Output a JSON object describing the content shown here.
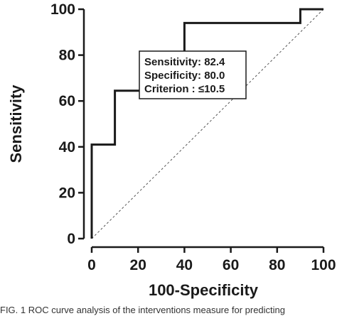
{
  "chart_data": {
    "type": "line",
    "xlabel": "100-Specificity",
    "ylabel": "Sensitivity",
    "xlim": [
      0,
      100
    ],
    "ylim": [
      0,
      100
    ],
    "x_ticks": [
      "0",
      "20",
      "40",
      "60",
      "80",
      "100"
    ],
    "y_ticks": [
      "0",
      "20",
      "40",
      "60",
      "80",
      "100"
    ],
    "grid": false,
    "series": [
      {
        "style": "step",
        "x": [
          0,
          0,
          10,
          10,
          40,
          40,
          90,
          90,
          100
        ],
        "y": [
          0,
          41,
          41,
          64.5,
          64.5,
          94,
          94,
          100,
          100
        ]
      },
      {
        "style": "diagonal-dotted",
        "x": [
          0,
          100
        ],
        "y": [
          0,
          100
        ]
      }
    ],
    "annotation": {
      "lines": [
        "Sensitivity: 82.4",
        "Specificity: 80.0",
        "Criterion : ≤10.5"
      ]
    }
  },
  "caption": "FIG. 1 ROC curve analysis of the interventions measure for predicting"
}
